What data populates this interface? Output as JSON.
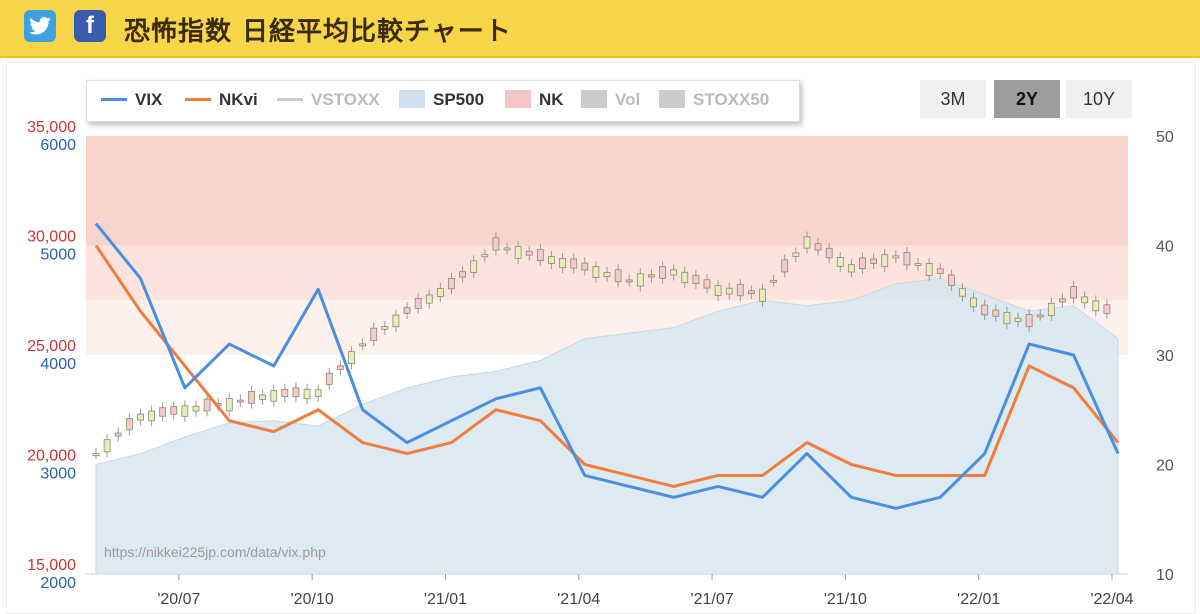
{
  "header": {
    "title": "恐怖指数 日経平均比較チャート",
    "twitter_icon": "twitter-icon",
    "facebook_icon": "facebook-icon",
    "facebook_glyph": "f",
    "background": "#f8d64a"
  },
  "legend": [
    {
      "label": "VIX",
      "kind": "line",
      "color": "#4a8ee0",
      "active": true
    },
    {
      "label": "NKvi",
      "kind": "line",
      "color": "#f07c3e",
      "active": true
    },
    {
      "label": "VSTOXX",
      "kind": "line",
      "color": "#cccccc",
      "active": false
    },
    {
      "label": "SP500",
      "kind": "area",
      "color": "#cfe0ec",
      "active": true
    },
    {
      "label": "NK",
      "kind": "area",
      "color": "#f5c4c8",
      "active": true
    },
    {
      "label": "Vol",
      "kind": "area",
      "color": "#cccccc",
      "active": false
    },
    {
      "label": "STOXX50",
      "kind": "area",
      "color": "#cccccc",
      "active": false
    }
  ],
  "range_buttons": [
    {
      "label": "3M",
      "active": false
    },
    {
      "label": "2Y",
      "active": true
    },
    {
      "label": "10Y",
      "active": false
    }
  ],
  "watermark": "https://nikkei225jp.com/data/vix.php",
  "chart_data": {
    "type": "line",
    "x": [
      "2020-05",
      "2020-06",
      "2020-07",
      "2020-08",
      "2020-09",
      "2020-10",
      "2020-11",
      "2020-12",
      "2021-01",
      "2021-02",
      "2021-03",
      "2021-04",
      "2021-05",
      "2021-06",
      "2021-07",
      "2021-08",
      "2021-09",
      "2021-10",
      "2021-11",
      "2021-12",
      "2022-01",
      "2022-02",
      "2022-03",
      "2022-04"
    ],
    "x_ticks": [
      "'20/07",
      "'20/10",
      "'21/01",
      "'21/04",
      "'21/07",
      "'21/10",
      "'22/01",
      "'22/04"
    ],
    "left_axis_nk": {
      "ticks": [
        "35,000",
        "30,000",
        "25,000",
        "20,000",
        "15,000"
      ],
      "color": "#cc3333",
      "range": [
        15000,
        35000
      ]
    },
    "left_axis_sp": {
      "ticks": [
        "6000",
        "5000",
        "4000",
        "3000",
        "2000"
      ],
      "color": "#2a62a8",
      "range": [
        2000,
        6000
      ]
    },
    "right_axis": {
      "ticks": [
        "50",
        "40",
        "30",
        "20",
        "10"
      ],
      "range": [
        10,
        50
      ]
    },
    "bands": [
      {
        "from": 30000,
        "to": 35000,
        "color": "#f9d4cc"
      },
      {
        "from": 27500,
        "to": 30000,
        "color": "#fce3de"
      },
      {
        "from": 25000,
        "to": 27500,
        "color": "#fdf0ed"
      }
    ],
    "series": [
      {
        "name": "VIX",
        "axis": "right",
        "color": "#4a8ee0",
        "values": [
          42,
          37,
          27,
          31,
          29,
          36,
          25,
          22,
          24,
          26,
          27,
          19,
          18,
          17,
          18,
          17,
          21,
          17,
          16,
          17,
          21,
          31,
          30,
          21
        ]
      },
      {
        "name": "NKvi",
        "axis": "right",
        "color": "#f07c3e",
        "values": [
          40,
          34,
          29,
          24,
          23,
          25,
          22,
          21,
          22,
          25,
          24,
          20,
          19,
          18,
          19,
          19,
          22,
          20,
          19,
          19,
          19,
          29,
          27,
          22
        ]
      },
      {
        "name": "SP500",
        "axis": "left_sp",
        "color": "#cfe0ec",
        "values": [
          3000,
          3100,
          3250,
          3380,
          3400,
          3350,
          3550,
          3700,
          3800,
          3850,
          3950,
          4150,
          4200,
          4250,
          4400,
          4500,
          4450,
          4500,
          4650,
          4700,
          4550,
          4400,
          4450,
          4150
        ]
      },
      {
        "name": "NK",
        "axis": "left_nk",
        "values": [
          20500,
          22200,
          22500,
          22800,
          23200,
          23300,
          25500,
          27000,
          28200,
          30000,
          29500,
          29000,
          28400,
          28800,
          28000,
          27800,
          30200,
          29000,
          29500,
          28800,
          27000,
          26500,
          27800,
          26800
        ]
      }
    ]
  }
}
